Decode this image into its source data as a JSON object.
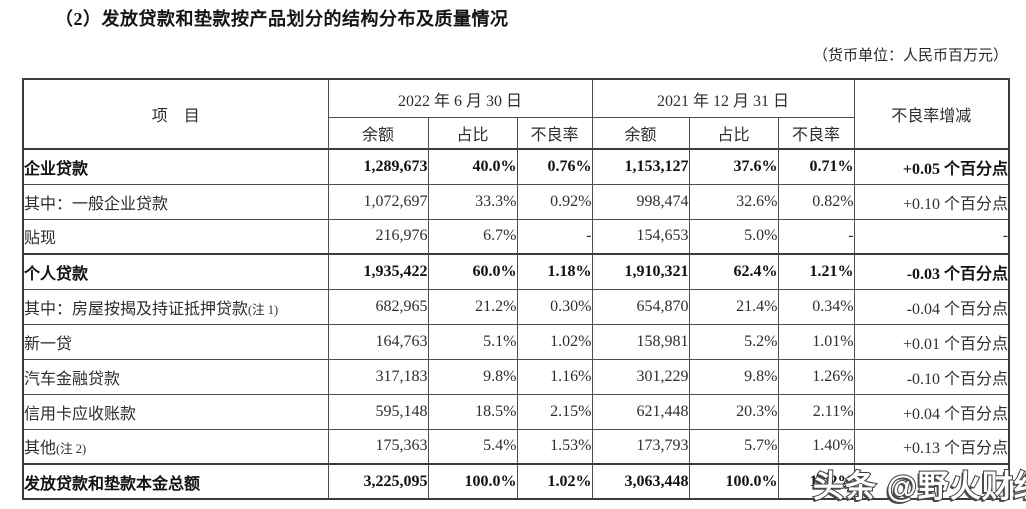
{
  "title": "（2）发放贷款和垫款按产品划分的结构分布及质量情况",
  "unit_note": "（货币单位：人民币百万元）",
  "table": {
    "item_header": "项　目",
    "col_groups": [
      {
        "label": "2022 年 6 月 30 日",
        "sub": [
          "余额",
          "占比",
          "不良率"
        ]
      },
      {
        "label": "2021 年 12 月 31 日",
        "sub": [
          "余额",
          "占比",
          "不良率"
        ]
      }
    ],
    "change_header": "不良率增减",
    "rows": [
      {
        "item": "企业贷款",
        "note": "",
        "indent": 0,
        "bold": true,
        "thick_top": true,
        "values": [
          "1,289,673",
          "40.0%",
          "0.76%",
          "1,153,127",
          "37.6%",
          "0.71%",
          "+0.05 个百分点"
        ]
      },
      {
        "item": "其中：一般企业贷款",
        "note": "",
        "indent": 0,
        "bold": false,
        "thick_top": false,
        "values": [
          "1,072,697",
          "33.3%",
          "0.92%",
          "998,474",
          "32.6%",
          "0.82%",
          "+0.10 个百分点"
        ]
      },
      {
        "item": "贴现",
        "note": "",
        "indent": 1,
        "bold": false,
        "thick_top": false,
        "values": [
          "216,976",
          "6.7%",
          "-",
          "154,653",
          "5.0%",
          "-",
          "-"
        ]
      },
      {
        "item": "个人贷款",
        "note": "",
        "indent": 0,
        "bold": true,
        "thick_top": true,
        "values": [
          "1,935,422",
          "60.0%",
          "1.18%",
          "1,910,321",
          "62.4%",
          "1.21%",
          "-0.03 个百分点"
        ]
      },
      {
        "item": "其中：房屋按揭及持证抵押贷款",
        "note": "(注 1)",
        "indent": 0,
        "bold": false,
        "thick_top": false,
        "values": [
          "682,965",
          "21.2%",
          "0.30%",
          "654,870",
          "21.4%",
          "0.34%",
          "-0.04 个百分点"
        ]
      },
      {
        "item": "新一贷",
        "note": "",
        "indent": 1,
        "bold": false,
        "thick_top": false,
        "values": [
          "164,763",
          "5.1%",
          "1.02%",
          "158,981",
          "5.2%",
          "1.01%",
          "+0.01 个百分点"
        ]
      },
      {
        "item": "汽车金融贷款",
        "note": "",
        "indent": 1,
        "bold": false,
        "thick_top": false,
        "values": [
          "317,183",
          "9.8%",
          "1.16%",
          "301,229",
          "9.8%",
          "1.26%",
          "-0.10 个百分点"
        ]
      },
      {
        "item": "信用卡应收账款",
        "note": "",
        "indent": 1,
        "bold": false,
        "thick_top": false,
        "values": [
          "595,148",
          "18.5%",
          "2.15%",
          "621,448",
          "20.3%",
          "2.11%",
          "+0.04 个百分点"
        ]
      },
      {
        "item": "其他",
        "note": "(注 2)",
        "indent": 1,
        "bold": false,
        "thick_top": false,
        "values": [
          "175,363",
          "5.4%",
          "1.53%",
          "173,793",
          "5.7%",
          "1.40%",
          "+0.13 个百分点"
        ]
      },
      {
        "item": "发放贷款和垫款本金总额",
        "note": "",
        "indent": 0,
        "bold": true,
        "thick_top": true,
        "values": [
          "3,225,095",
          "100.0%",
          "1.02%",
          "3,063,448",
          "100.0%",
          "1.02%",
          ""
        ]
      }
    ]
  },
  "watermark": "头条 @野火财经"
}
